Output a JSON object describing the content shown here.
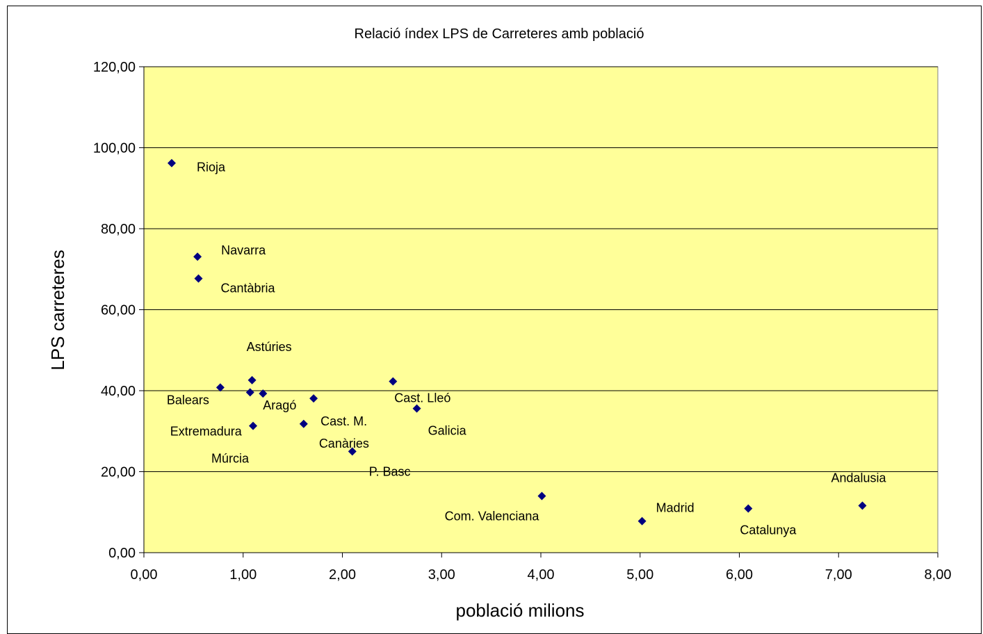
{
  "chart_data": {
    "type": "scatter",
    "title": "Relació índex LPS de Carreteres amb població",
    "xlabel": "població milions",
    "ylabel": "LPS carreteres",
    "xlim": [
      0,
      8
    ],
    "ylim": [
      0,
      120
    ],
    "x_ticks": [
      "0,00",
      "1,00",
      "2,00",
      "3,00",
      "4,00",
      "5,00",
      "6,00",
      "7,00",
      "8,00"
    ],
    "y_ticks": [
      "0,00",
      "20,00",
      "40,00",
      "60,00",
      "80,00",
      "100,00",
      "120,00"
    ],
    "grid": "horizontal",
    "plot_background": "#FFFF99",
    "marker_color": "#000080",
    "points": [
      {
        "label": "Rioja",
        "x": 0.28,
        "y": 96.2
      },
      {
        "label": "Navarra",
        "x": 0.54,
        "y": 73.1
      },
      {
        "label": "Cantàbria",
        "x": 0.55,
        "y": 67.7
      },
      {
        "label": "Balears",
        "x": 0.77,
        "y": 40.8
      },
      {
        "label": "Astúries",
        "x": 1.09,
        "y": 42.6
      },
      {
        "label": "Extremadura",
        "x": 1.07,
        "y": 39.6
      },
      {
        "label": "Múrcia",
        "x": 1.1,
        "y": 31.3
      },
      {
        "label": "Aragó",
        "x": 1.2,
        "y": 39.3
      },
      {
        "label": "Cast. M.",
        "x": 1.71,
        "y": 38.1
      },
      {
        "label": "Canàries",
        "x": 1.61,
        "y": 31.8
      },
      {
        "label": "P. Basc",
        "x": 2.1,
        "y": 25.0
      },
      {
        "label": "Cast. Lleó",
        "x": 2.51,
        "y": 42.3
      },
      {
        "label": "Galicia",
        "x": 2.75,
        "y": 35.6
      },
      {
        "label": "Com. Valenciana",
        "x": 4.01,
        "y": 14.0
      },
      {
        "label": "Madrid",
        "x": 5.02,
        "y": 7.8
      },
      {
        "label": "Catalunya",
        "x": 6.09,
        "y": 10.9
      },
      {
        "label": "Andalusia",
        "x": 7.24,
        "y": 11.6
      }
    ]
  }
}
